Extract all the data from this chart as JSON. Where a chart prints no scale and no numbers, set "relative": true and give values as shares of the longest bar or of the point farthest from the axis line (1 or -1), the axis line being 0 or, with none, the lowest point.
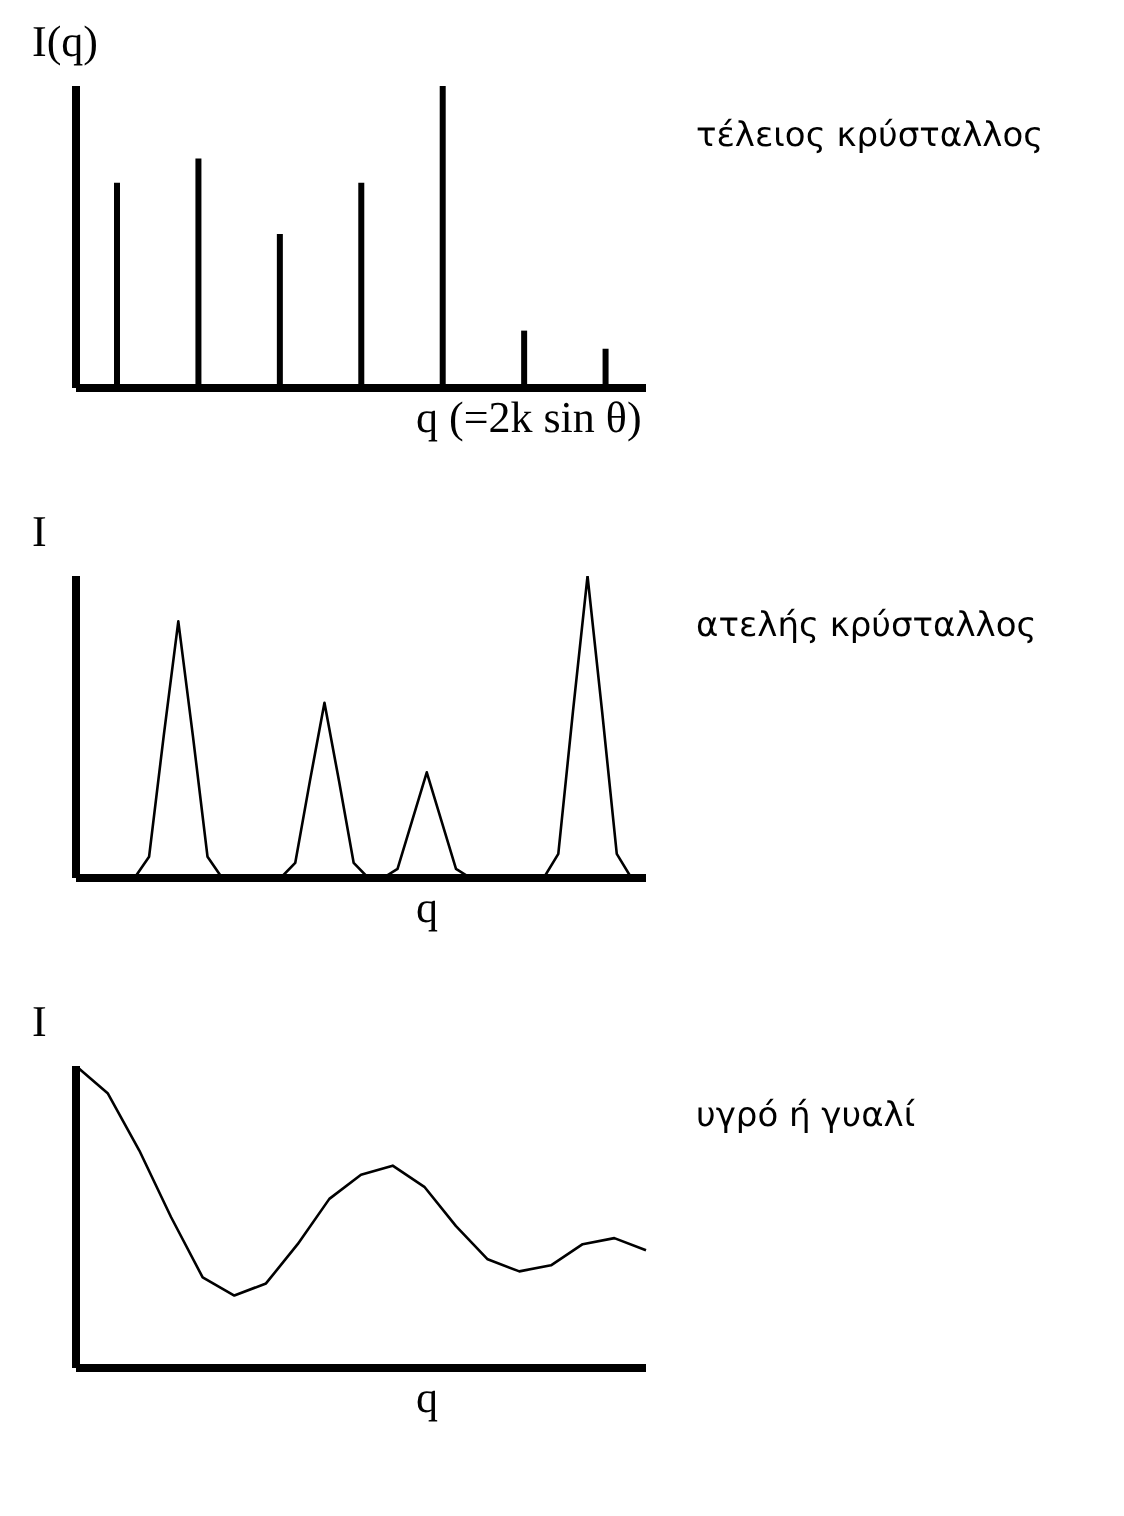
{
  "chart_data": [
    {
      "type": "bar",
      "relative": true,
      "ylabel": "I(q)",
      "xlabel": "q (=2k sin θ)",
      "annotations": [
        "τέλειος κρύσταλλος"
      ],
      "color": "#000000",
      "categories": [
        null,
        null,
        null,
        null,
        null,
        null,
        null
      ],
      "values": [
        0.68,
        0.76,
        0.51,
        0.68,
        1,
        0.19,
        0.13
      ]
    },
    {
      "type": "line",
      "relative": true,
      "ylabel": "I",
      "xlabel": "q",
      "annotations": [
        "ατελής κρύσταλλος"
      ],
      "color": "#000000",
      "marker": "none",
      "categories": [
        null,
        null,
        null,
        null,
        null,
        null,
        null,
        null,
        null,
        null,
        null,
        null,
        null,
        null,
        null,
        null,
        null,
        null,
        null,
        null,
        null,
        null,
        null,
        null,
        null,
        null,
        null,
        null,
        null,
        null,
        null,
        null,
        null,
        null,
        null,
        null,
        null,
        null,
        null,
        null
      ],
      "values": [
        0,
        0,
        0,
        0,
        0,
        0.07,
        0.47,
        0.85,
        0.47,
        0.07,
        0,
        0,
        0,
        0,
        0,
        0.05,
        0.32,
        0.58,
        0.32,
        0.05,
        0,
        0,
        0.03,
        0.19,
        0.35,
        0.19,
        0.03,
        0,
        0,
        0,
        0,
        0,
        0,
        0.08,
        0.55,
        1,
        0.55,
        0.08,
        0,
        0
      ]
    },
    {
      "type": "line",
      "relative": true,
      "ylabel": "I",
      "xlabel": "q",
      "annotations": [
        "υγρό ή γυαλί"
      ],
      "color": "#000000",
      "marker": "none",
      "categories": [
        null,
        null,
        null,
        null,
        null,
        null,
        null,
        null,
        null,
        null,
        null,
        null,
        null,
        null,
        null,
        null,
        null,
        null,
        null
      ],
      "values": [
        1,
        0.91,
        0.72,
        0.5,
        0.3,
        0.24,
        0.28,
        0.41,
        0.56,
        0.64,
        0.67,
        0.6,
        0.47,
        0.36,
        0.32,
        0.34,
        0.41,
        0.43,
        0.39
      ]
    }
  ]
}
